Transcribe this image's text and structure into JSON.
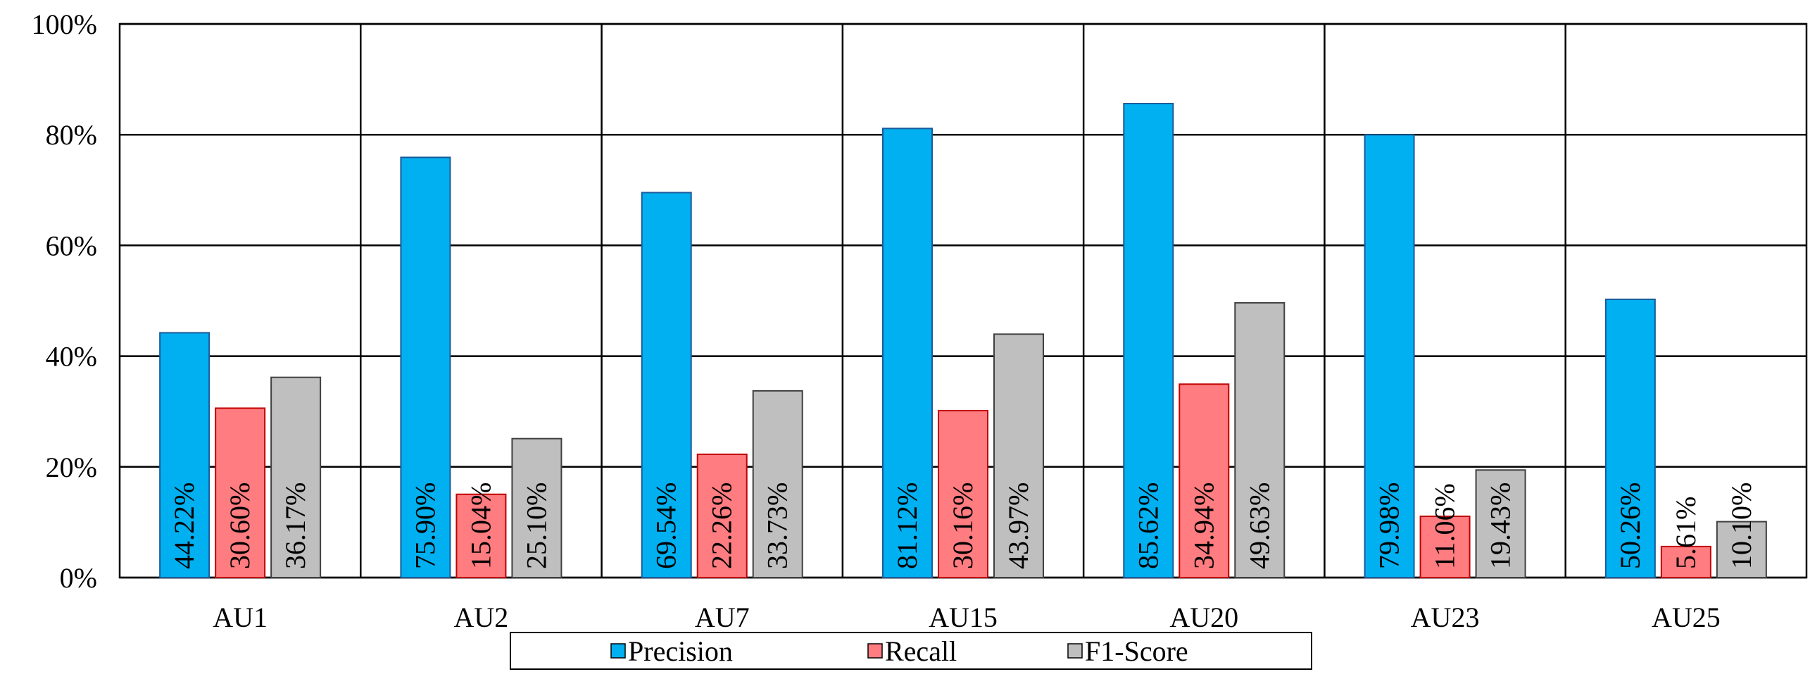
{
  "chart_data": {
    "type": "bar",
    "categories": [
      "AU1",
      "AU2",
      "AU7",
      "AU15",
      "AU20",
      "AU23",
      "AU25"
    ],
    "series": [
      {
        "name": "Precision",
        "color": "#00B0F0",
        "values": [
          44.22,
          75.9,
          69.54,
          81.12,
          85.62,
          79.98,
          50.26
        ],
        "labels": [
          "44.22%",
          "75.90%",
          "69.54%",
          "81.12%",
          "85.62%",
          "79.98%",
          "50.26%"
        ]
      },
      {
        "name": "Recall",
        "color": "#FF7C80",
        "values": [
          30.6,
          15.04,
          22.26,
          30.16,
          34.94,
          11.06,
          5.61
        ],
        "labels": [
          "30.60%",
          "15.04%",
          "22.26%",
          "30.16%",
          "34.94%",
          "11.06%",
          "5.61%"
        ]
      },
      {
        "name": "F1-Score",
        "color": "#BFBFBF",
        "values": [
          36.17,
          25.1,
          33.73,
          43.97,
          49.63,
          19.43,
          10.1
        ],
        "labels": [
          "36.17%",
          "25.10%",
          "33.73%",
          "43.97%",
          "49.63%",
          "19.43%",
          "10.10%"
        ]
      }
    ],
    "yticks": [
      "0%",
      "20%",
      "40%",
      "60%",
      "80%",
      "100%"
    ],
    "ylim": [
      0,
      100
    ],
    "grid": true,
    "legend_position": "bottom"
  }
}
